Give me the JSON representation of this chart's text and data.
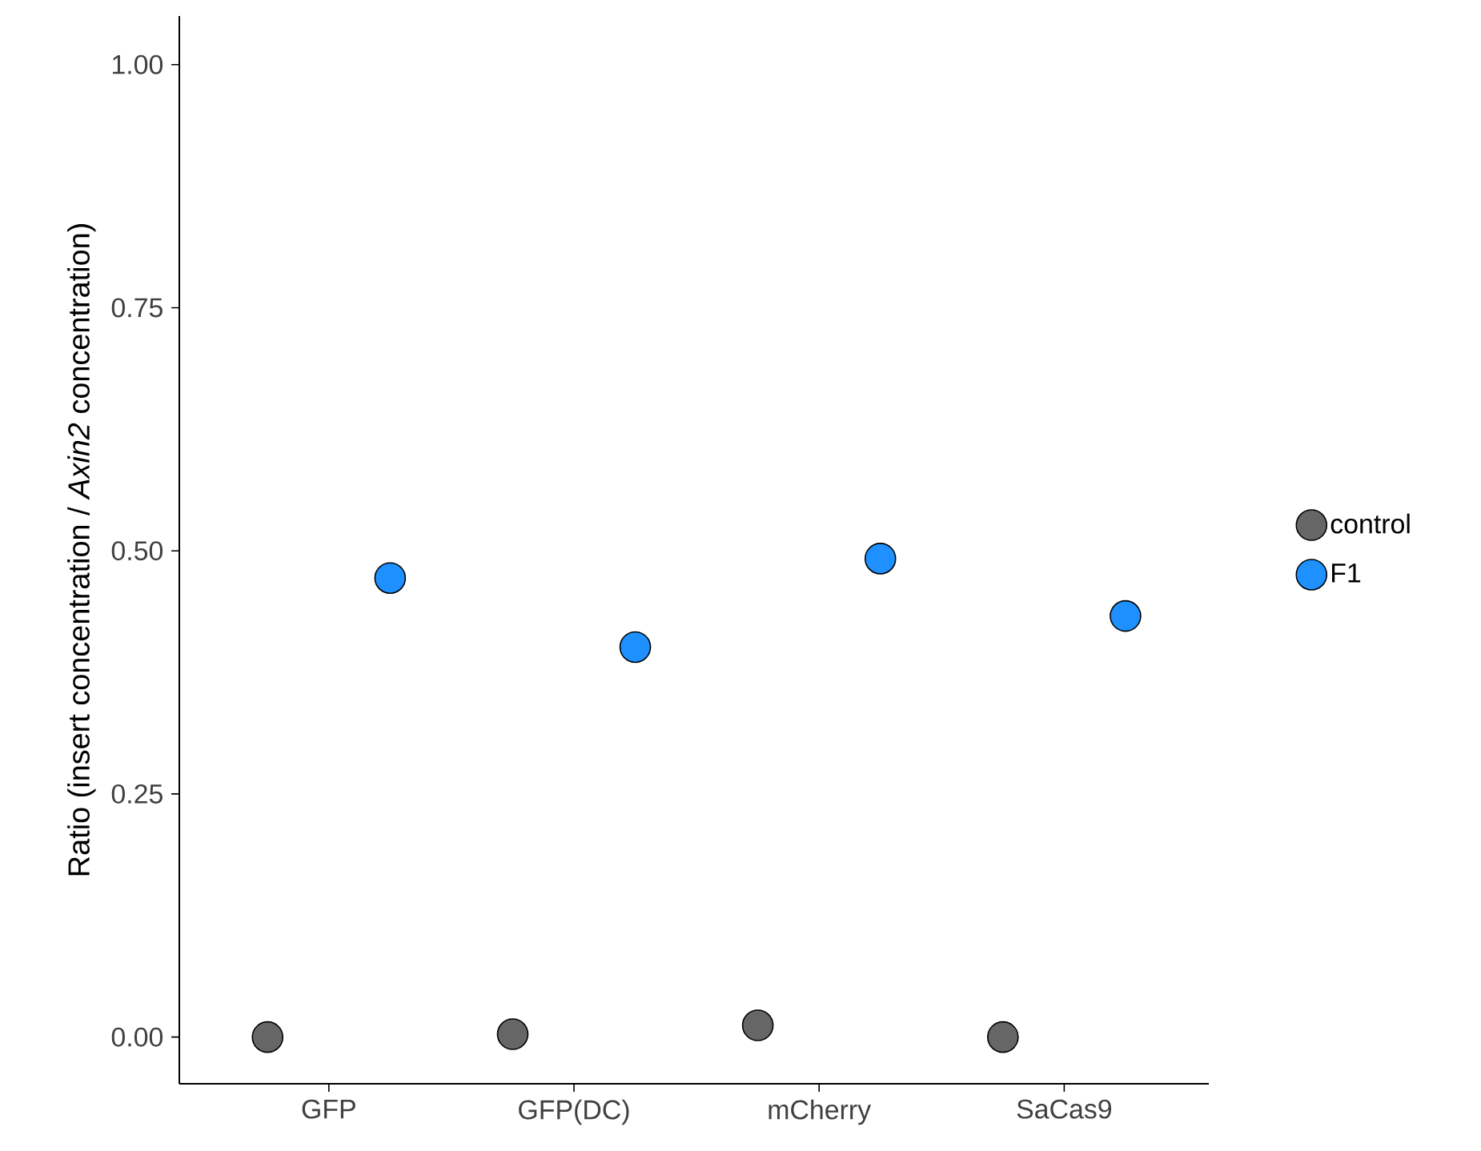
{
  "chart_data": {
    "type": "scatter",
    "ylabel": "Ratio (insert concentration / *Axin2* concentration)",
    "categories": [
      "GFP",
      "GFP(DC)",
      "mCherry",
      "SaCas9"
    ],
    "series": [
      {
        "name": "control",
        "color": "#666666",
        "values": [
          0.0,
          0.003,
          0.012,
          0.0
        ]
      },
      {
        "name": "F1",
        "color": "#1e90ff",
        "values": [
          0.472,
          0.401,
          0.492,
          0.433
        ]
      }
    ],
    "ylim": [
      -0.048,
      1.05
    ],
    "yticks": [
      {
        "value": 0,
        "label": "0.00"
      },
      {
        "value": 0.25,
        "label": "0.25"
      },
      {
        "value": 0.5,
        "label": "0.50"
      },
      {
        "value": 0.75,
        "label": "0.75"
      },
      {
        "value": 1,
        "label": "1.00"
      }
    ],
    "marker": "circle",
    "grid": false,
    "legend": "right"
  }
}
